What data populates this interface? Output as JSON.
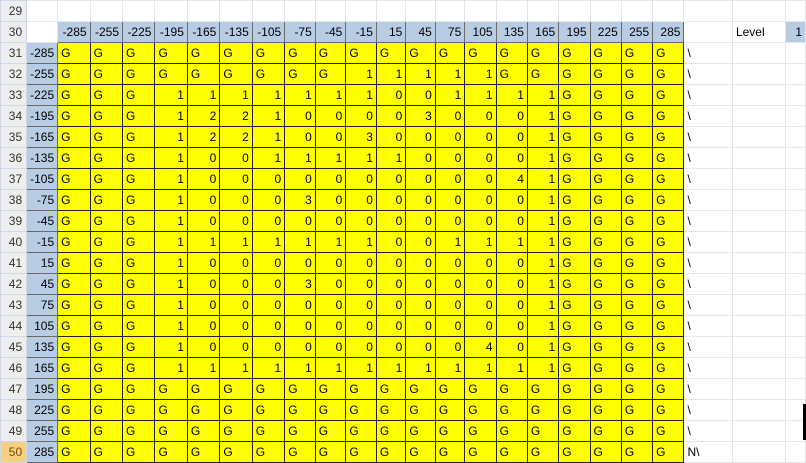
{
  "row_numbers": [
    29,
    30,
    31,
    32,
    33,
    34,
    35,
    36,
    37,
    38,
    39,
    40,
    41,
    42,
    43,
    44,
    45,
    46,
    47,
    48,
    49,
    50
  ],
  "active_row": 50,
  "col_headers": [
    "-285",
    "-255",
    "-225",
    "-195",
    "-165",
    "-135",
    "-105",
    "-75",
    "-45",
    "-15",
    "15",
    "45",
    "75",
    "105",
    "135",
    "165",
    "195",
    "225",
    "255",
    "285"
  ],
  "level_label": "Level",
  "level_value": "1",
  "rows": [
    {
      "head": "-285",
      "cells": [
        "G",
        "G",
        "G",
        "G",
        "G",
        "G",
        "G",
        "G",
        "G",
        "G",
        "G",
        "G",
        "G",
        "G",
        "G",
        "G",
        "G",
        "G",
        "G",
        "G"
      ],
      "after": "\\"
    },
    {
      "head": "-255",
      "cells": [
        "G",
        "G",
        "G",
        "G",
        "G",
        "G",
        "G",
        "G",
        "G",
        "1",
        "1",
        "1",
        "1",
        "1",
        "G",
        "G",
        "G",
        "G",
        "G",
        "G"
      ],
      "after": "\\"
    },
    {
      "head": "-225",
      "cells": [
        "G",
        "G",
        "G",
        "1",
        "1",
        "1",
        "1",
        "1",
        "1",
        "1",
        "0",
        "0",
        "1",
        "1",
        "1",
        "1",
        "G",
        "G",
        "G",
        "G"
      ],
      "after": "\\"
    },
    {
      "head": "-195",
      "cells": [
        "G",
        "G",
        "G",
        "1",
        "2",
        "2",
        "1",
        "0",
        "0",
        "0",
        "0",
        "3",
        "0",
        "0",
        "0",
        "1",
        "G",
        "G",
        "G",
        "G"
      ],
      "after": "\\"
    },
    {
      "head": "-165",
      "cells": [
        "G",
        "G",
        "G",
        "1",
        "2",
        "2",
        "1",
        "0",
        "0",
        "3",
        "0",
        "0",
        "0",
        "0",
        "0",
        "1",
        "G",
        "G",
        "G",
        "G"
      ],
      "after": "\\"
    },
    {
      "head": "-135",
      "cells": [
        "G",
        "G",
        "G",
        "1",
        "0",
        "0",
        "1",
        "1",
        "1",
        "1",
        "1",
        "0",
        "0",
        "0",
        "0",
        "1",
        "G",
        "G",
        "G",
        "G"
      ],
      "after": "\\"
    },
    {
      "head": "-105",
      "cells": [
        "G",
        "G",
        "G",
        "1",
        "0",
        "0",
        "0",
        "0",
        "0",
        "0",
        "0",
        "0",
        "0",
        "0",
        "4",
        "1",
        "G",
        "G",
        "G",
        "G"
      ],
      "after": "\\"
    },
    {
      "head": "-75",
      "cells": [
        "G",
        "G",
        "G",
        "1",
        "0",
        "0",
        "0",
        "3",
        "0",
        "0",
        "0",
        "0",
        "0",
        "0",
        "0",
        "1",
        "G",
        "G",
        "G",
        "G"
      ],
      "after": "\\"
    },
    {
      "head": "-45",
      "cells": [
        "G",
        "G",
        "G",
        "1",
        "0",
        "0",
        "0",
        "0",
        "0",
        "0",
        "0",
        "0",
        "0",
        "0",
        "0",
        "1",
        "G",
        "G",
        "G",
        "G"
      ],
      "after": "\\"
    },
    {
      "head": "-15",
      "cells": [
        "G",
        "G",
        "G",
        "1",
        "1",
        "1",
        "1",
        "1",
        "1",
        "1",
        "0",
        "0",
        "1",
        "1",
        "1",
        "1",
        "G",
        "G",
        "G",
        "G"
      ],
      "after": "\\"
    },
    {
      "head": "15",
      "cells": [
        "G",
        "G",
        "G",
        "1",
        "0",
        "0",
        "0",
        "0",
        "0",
        "0",
        "0",
        "0",
        "0",
        "0",
        "0",
        "1",
        "G",
        "G",
        "G",
        "G"
      ],
      "after": "\\"
    },
    {
      "head": "45",
      "cells": [
        "G",
        "G",
        "G",
        "1",
        "0",
        "0",
        "0",
        "3",
        "0",
        "0",
        "0",
        "0",
        "0",
        "0",
        "0",
        "1",
        "G",
        "G",
        "G",
        "G"
      ],
      "after": "\\"
    },
    {
      "head": "75",
      "cells": [
        "G",
        "G",
        "G",
        "1",
        "0",
        "0",
        "0",
        "0",
        "0",
        "0",
        "0",
        "0",
        "0",
        "0",
        "0",
        "1",
        "G",
        "G",
        "G",
        "G"
      ],
      "after": "\\"
    },
    {
      "head": "105",
      "cells": [
        "G",
        "G",
        "G",
        "1",
        "0",
        "0",
        "0",
        "0",
        "0",
        "0",
        "0",
        "0",
        "0",
        "0",
        "0",
        "1",
        "G",
        "G",
        "G",
        "G"
      ],
      "after": "\\"
    },
    {
      "head": "135",
      "cells": [
        "G",
        "G",
        "G",
        "1",
        "0",
        "0",
        "0",
        "0",
        "0",
        "0",
        "0",
        "0",
        "0",
        "4",
        "0",
        "1",
        "G",
        "G",
        "G",
        "G"
      ],
      "after": "\\"
    },
    {
      "head": "165",
      "cells": [
        "G",
        "G",
        "G",
        "1",
        "1",
        "1",
        "1",
        "1",
        "1",
        "1",
        "1",
        "1",
        "1",
        "1",
        "1",
        "1",
        "G",
        "G",
        "G",
        "G"
      ],
      "after": "\\"
    },
    {
      "head": "195",
      "cells": [
        "G",
        "G",
        "G",
        "G",
        "G",
        "G",
        "G",
        "G",
        "G",
        "G",
        "G",
        "G",
        "G",
        "G",
        "G",
        "G",
        "G",
        "G",
        "G",
        "G"
      ],
      "after": "\\"
    },
    {
      "head": "225",
      "cells": [
        "G",
        "G",
        "G",
        "G",
        "G",
        "G",
        "G",
        "G",
        "G",
        "G",
        "G",
        "G",
        "G",
        "G",
        "G",
        "G",
        "G",
        "G",
        "G",
        "G"
      ],
      "after": "\\"
    },
    {
      "head": "255",
      "cells": [
        "G",
        "G",
        "G",
        "G",
        "G",
        "G",
        "G",
        "G",
        "G",
        "G",
        "G",
        "G",
        "G",
        "G",
        "G",
        "G",
        "G",
        "G",
        "G",
        "G"
      ],
      "after": "\\"
    },
    {
      "head": "285",
      "cells": [
        "G",
        "G",
        "G",
        "G",
        "G",
        "G",
        "G",
        "G",
        "G",
        "G",
        "G",
        "G",
        "G",
        "G",
        "G",
        "G",
        "G",
        "G",
        "G",
        "G"
      ],
      "after": "N\\"
    }
  ]
}
